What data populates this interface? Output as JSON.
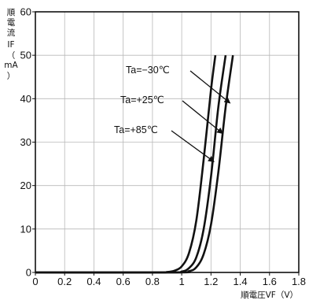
{
  "chart_data": {
    "type": "line",
    "title": "",
    "xlabel": "順電圧VF（V）",
    "ylabel": "順電流 IF （mA）",
    "ylabel_parts": [
      "順",
      "電",
      "流",
      "IF",
      "（",
      "mA",
      "）"
    ],
    "xlim": [
      0,
      1.8
    ],
    "ylim": [
      0,
      60
    ],
    "xticks": [
      0,
      0.2,
      0.4,
      0.6,
      0.8,
      1,
      1.2,
      1.4,
      1.6,
      1.8
    ],
    "xtick_labels": [
      "0",
      "0.2",
      "0.4",
      "0.6",
      "0.8",
      "1",
      "1.2",
      "1.4",
      "1.6",
      "1.8"
    ],
    "yticks": [
      0,
      10,
      20,
      30,
      40,
      50,
      60
    ],
    "ytick_labels": [
      "0",
      "10",
      "20",
      "30",
      "40",
      "50",
      "60"
    ],
    "grid": true,
    "legend": "none",
    "line_color": "#111111",
    "series": [
      {
        "name": "Ta=+85℃",
        "x": [
          0,
          0.8,
          0.9,
          0.95,
          1.0,
          1.05,
          1.1,
          1.15,
          1.2,
          1.23
        ],
        "y": [
          0,
          0,
          0.1,
          0.4,
          1.4,
          4.5,
          12,
          26,
          42,
          50
        ]
      },
      {
        "name": "Ta=+25℃",
        "x": [
          0,
          0.9,
          1.0,
          1.05,
          1.1,
          1.15,
          1.2,
          1.25,
          1.3
        ],
        "y": [
          0,
          0,
          0.2,
          1.0,
          3.5,
          10,
          22,
          38,
          50
        ]
      },
      {
        "name": "Ta=−30℃",
        "x": [
          0,
          0.95,
          1.05,
          1.1,
          1.15,
          1.2,
          1.25,
          1.3,
          1.35
        ],
        "y": [
          0,
          0,
          0.3,
          1.2,
          4.2,
          11,
          23,
          38,
          50
        ]
      }
    ],
    "annotations": [
      {
        "text": "Ta=−30℃",
        "series": "Ta=−30℃",
        "arrow_to": [
          1.33,
          39
        ]
      },
      {
        "text": "Ta=+25℃",
        "series": "Ta=+25℃",
        "arrow_to": [
          1.28,
          32
        ]
      },
      {
        "text": "Ta=+85℃",
        "series": "Ta=+85℃",
        "arrow_to": [
          1.22,
          25.5
        ]
      }
    ]
  }
}
